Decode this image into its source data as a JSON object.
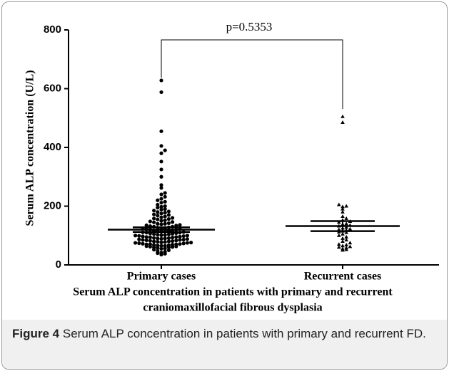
{
  "chart_data": {
    "type": "strip",
    "ylabel": "Serum ALP concentration (U/L)",
    "xlabel": [
      "Serum ALP concentration in patients with primary and recurrent",
      "craniomaxillofacial fibrous dysplasia"
    ],
    "annotation": "p=0.5353",
    "categories": [
      "Primary cases",
      "Recurrent cases"
    ],
    "groups": [
      {
        "marker": "circle",
        "color": "#000000",
        "mean": 120,
        "error": 8,
        "values": [
          628,
          588,
          455,
          405,
          390,
          380,
          352,
          325,
          300,
          272,
          262,
          245,
          240,
          232,
          225,
          220,
          215,
          212,
          205,
          200,
          198,
          195,
          190,
          188,
          185,
          182,
          180,
          178,
          175,
          172,
          170,
          168,
          165,
          162,
          160,
          158,
          156,
          155,
          152,
          150,
          148,
          146,
          145,
          142,
          140,
          140,
          138,
          136,
          135,
          134,
          132,
          130,
          130,
          128,
          127,
          126,
          125,
          124,
          122,
          121,
          120,
          120,
          118,
          117,
          116,
          115,
          114,
          113,
          112,
          111,
          110,
          110,
          108,
          107,
          106,
          105,
          104,
          103,
          102,
          101,
          100,
          100,
          99,
          98,
          97,
          96,
          95,
          95,
          94,
          93,
          92,
          91,
          90,
          90,
          89,
          88,
          87,
          86,
          85,
          85,
          84,
          83,
          82,
          81,
          80,
          80,
          79,
          78,
          77,
          76,
          75,
          75,
          74,
          73,
          72,
          71,
          70,
          70,
          70,
          69,
          68,
          67,
          66,
          65,
          65,
          64,
          63,
          62,
          61,
          60,
          60,
          58,
          56,
          55,
          52,
          50,
          48,
          45,
          42,
          40,
          38,
          35
        ]
      },
      {
        "marker": "triangle",
        "color": "#000000",
        "mean": 132,
        "error": 17,
        "values": [
          505,
          485,
          205,
          200,
          198,
          190,
          180,
          165,
          158,
          152,
          148,
          145,
          140,
          138,
          135,
          132,
          128,
          125,
          122,
          120,
          118,
          115,
          112,
          110,
          105,
          100,
          95,
          90,
          85,
          80,
          75,
          70,
          68,
          65,
          62,
          60,
          58,
          55,
          52,
          50
        ]
      }
    ],
    "ylim": [
      0,
      800
    ],
    "yticks": [
      0,
      200,
      400,
      600,
      800
    ]
  },
  "caption": {
    "label": "Figure 4",
    "text": "Serum ALP concentration in patients with primary and recurrent FD."
  }
}
